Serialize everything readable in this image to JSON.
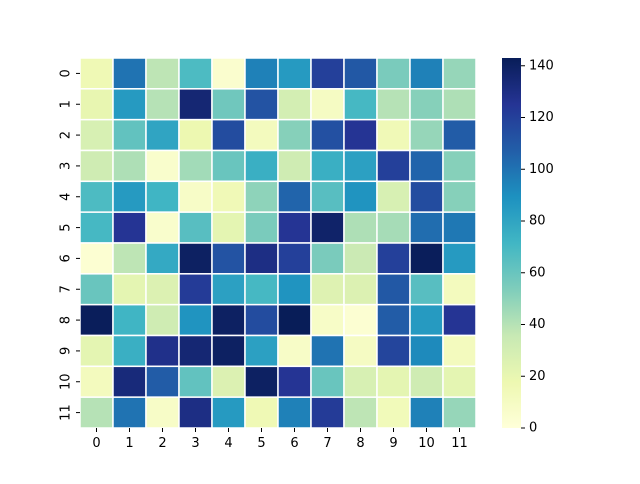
{
  "chart_data": {
    "type": "heatmap",
    "title": "",
    "xlabel": "",
    "ylabel": "",
    "x_categories": [
      "0",
      "1",
      "2",
      "3",
      "4",
      "5",
      "6",
      "7",
      "8",
      "9",
      "10",
      "11"
    ],
    "y_categories": [
      "0",
      "1",
      "2",
      "3",
      "4",
      "5",
      "6",
      "7",
      "8",
      "9",
      "10",
      "11"
    ],
    "values": [
      [
        16,
        100,
        38,
        68,
        5,
        95,
        85,
        120,
        110,
        55,
        95,
        48
      ],
      [
        20,
        85,
        40,
        135,
        58,
        112,
        30,
        10,
        70,
        40,
        52,
        42
      ],
      [
        28,
        62,
        80,
        18,
        115,
        12,
        52,
        113,
        125,
        15,
        48,
        108
      ],
      [
        32,
        42,
        6,
        45,
        60,
        75,
        32,
        75,
        82,
        120,
        105,
        52
      ],
      [
        68,
        85,
        72,
        8,
        15,
        50,
        105,
        65,
        88,
        28,
        115,
        52
      ],
      [
        70,
        125,
        6,
        65,
        22,
        55,
        125,
        138,
        42,
        44,
        102,
        98
      ],
      [
        3,
        38,
        78,
        140,
        112,
        130,
        120,
        55,
        34,
        120,
        142,
        85
      ],
      [
        60,
        22,
        26,
        122,
        82,
        70,
        88,
        25,
        26,
        110,
        65,
        12
      ],
      [
        142,
        72,
        32,
        88,
        140,
        115,
        143,
        8,
        3,
        108,
        85,
        125
      ],
      [
        22,
        75,
        128,
        135,
        140,
        82,
        8,
        100,
        10,
        118,
        92,
        12
      ],
      [
        12,
        133,
        108,
        62,
        26,
        140,
        125,
        60,
        28,
        22,
        32,
        22
      ],
      [
        40,
        100,
        8,
        130,
        85,
        16,
        95,
        122,
        38,
        14,
        95,
        48
      ]
    ],
    "vmin": 0,
    "vmax": 143,
    "colormap": "YlGnBu",
    "colorbar_ticks": [
      0,
      20,
      40,
      60,
      80,
      100,
      120,
      140
    ],
    "cell_border_color": "#ffffff"
  }
}
